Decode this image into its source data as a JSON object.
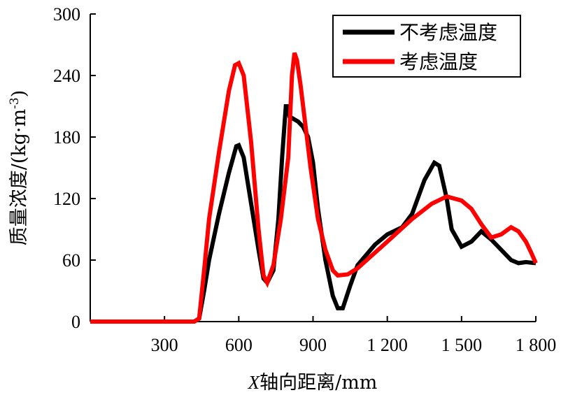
{
  "chart_data": {
    "type": "line",
    "xlabel": "X轴向距离/mm",
    "ylabel": "质量浓度/(kg·m⁻³)",
    "xlim": [
      0,
      1800
    ],
    "ylim": [
      0,
      300
    ],
    "x_ticks": [
      300,
      600,
      900,
      1200,
      1500,
      1800
    ],
    "x_tick_labels": [
      "300",
      "600",
      "900",
      "1 200",
      "1 500",
      "1 800"
    ],
    "y_ticks": [
      0,
      60,
      120,
      180,
      240,
      300
    ],
    "y_tick_labels": [
      "0",
      "60",
      "120",
      "180",
      "240",
      "300"
    ],
    "legend_position": "top-right",
    "series": [
      {
        "name": "不考虑温度",
        "color": "#000000",
        "points": [
          [
            0,
            0
          ],
          [
            300,
            0
          ],
          [
            420,
            0
          ],
          [
            440,
            3
          ],
          [
            460,
            30
          ],
          [
            480,
            60
          ],
          [
            520,
            105
          ],
          [
            560,
            145
          ],
          [
            590,
            171
          ],
          [
            600,
            172
          ],
          [
            620,
            160
          ],
          [
            650,
            115
          ],
          [
            680,
            70
          ],
          [
            700,
            42
          ],
          [
            715,
            38
          ],
          [
            740,
            50
          ],
          [
            760,
            100
          ],
          [
            775,
            160
          ],
          [
            790,
            210
          ],
          [
            800,
            210
          ],
          [
            805,
            200
          ],
          [
            840,
            195
          ],
          [
            860,
            190
          ],
          [
            880,
            180
          ],
          [
            900,
            155
          ],
          [
            920,
            110
          ],
          [
            950,
            60
          ],
          [
            980,
            25
          ],
          [
            1000,
            13
          ],
          [
            1020,
            13
          ],
          [
            1050,
            35
          ],
          [
            1080,
            55
          ],
          [
            1150,
            75
          ],
          [
            1200,
            85
          ],
          [
            1260,
            92
          ],
          [
            1300,
            105
          ],
          [
            1350,
            138
          ],
          [
            1390,
            155
          ],
          [
            1410,
            152
          ],
          [
            1440,
            120
          ],
          [
            1460,
            90
          ],
          [
            1500,
            73
          ],
          [
            1540,
            78
          ],
          [
            1580,
            88
          ],
          [
            1620,
            80
          ],
          [
            1660,
            70
          ],
          [
            1700,
            60
          ],
          [
            1730,
            57
          ],
          [
            1760,
            58
          ],
          [
            1800,
            57
          ]
        ]
      },
      {
        "name": "考虑温度",
        "color": "#ff0000",
        "points": [
          [
            0,
            0
          ],
          [
            300,
            0
          ],
          [
            420,
            0
          ],
          [
            440,
            3
          ],
          [
            460,
            50
          ],
          [
            480,
            100
          ],
          [
            520,
            165
          ],
          [
            560,
            225
          ],
          [
            585,
            250
          ],
          [
            600,
            252
          ],
          [
            620,
            240
          ],
          [
            650,
            175
          ],
          [
            680,
            90
          ],
          [
            700,
            45
          ],
          [
            715,
            38
          ],
          [
            740,
            55
          ],
          [
            770,
            100
          ],
          [
            800,
            160
          ],
          [
            815,
            240
          ],
          [
            825,
            262
          ],
          [
            835,
            255
          ],
          [
            850,
            230
          ],
          [
            870,
            190
          ],
          [
            890,
            150
          ],
          [
            920,
            100
          ],
          [
            950,
            70
          ],
          [
            980,
            50
          ],
          [
            1000,
            45
          ],
          [
            1040,
            46
          ],
          [
            1080,
            52
          ],
          [
            1140,
            65
          ],
          [
            1200,
            78
          ],
          [
            1300,
            100
          ],
          [
            1380,
            115
          ],
          [
            1440,
            122
          ],
          [
            1500,
            118
          ],
          [
            1540,
            110
          ],
          [
            1580,
            95
          ],
          [
            1620,
            82
          ],
          [
            1660,
            85
          ],
          [
            1700,
            92
          ],
          [
            1730,
            88
          ],
          [
            1760,
            78
          ],
          [
            1780,
            68
          ],
          [
            1800,
            57
          ]
        ]
      }
    ]
  }
}
